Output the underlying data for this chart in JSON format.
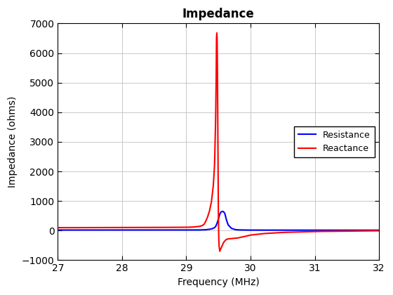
{
  "title": "Impedance",
  "xlabel": "Frequency (MHz)",
  "ylabel": "Impedance (ohms)",
  "xlim": [
    27,
    32
  ],
  "ylim": [
    -1000,
    7000
  ],
  "xticks": [
    27,
    28,
    29,
    30,
    31,
    32
  ],
  "yticks": [
    -1000,
    0,
    1000,
    2000,
    3000,
    4000,
    5000,
    6000,
    7000
  ],
  "resistance_color": "#0000FF",
  "reactance_color": "#FF0000",
  "legend_labels": [
    "Resistance",
    "Reactance"
  ],
  "background_color": "#FFFFFF",
  "grid_color": "#C0C0C0",
  "title_fontsize": 12,
  "axis_fontsize": 10,
  "legend_fontsize": 9,
  "line_width": 1.5,
  "reactance_points_f": [
    27.0,
    27.5,
    28.0,
    28.5,
    29.0,
    29.1,
    29.2,
    29.25,
    29.28,
    29.3,
    29.33,
    29.36,
    29.39,
    29.42,
    29.44,
    29.455,
    29.465,
    29.47,
    29.475,
    29.48,
    29.485,
    29.49,
    29.495,
    29.5,
    29.505,
    29.51,
    29.52,
    29.54,
    29.58,
    29.62,
    29.65,
    29.7,
    29.75,
    29.8,
    29.9,
    30.0,
    30.2,
    30.5,
    31.0,
    31.5,
    32.0
  ],
  "reactance_points_v": [
    100,
    102,
    105,
    108,
    112,
    120,
    140,
    170,
    220,
    300,
    450,
    650,
    950,
    1500,
    2200,
    3500,
    5000,
    6500,
    6700,
    6500,
    5500,
    4000,
    2000,
    500,
    -200,
    -500,
    -700,
    -600,
    -400,
    -300,
    -280,
    -270,
    -260,
    -250,
    -200,
    -150,
    -100,
    -60,
    -30,
    -15,
    -5
  ],
  "resistance_points_f": [
    27.0,
    27.5,
    28.0,
    28.5,
    29.0,
    29.1,
    29.2,
    29.25,
    29.3,
    29.35,
    29.4,
    29.44,
    29.46,
    29.48,
    29.5,
    29.52,
    29.54,
    29.56,
    29.58,
    29.6,
    29.62,
    29.65,
    29.7,
    29.75,
    29.8,
    29.9,
    30.0,
    30.5,
    31.0,
    31.5,
    32.0
  ],
  "resistance_points_v": [
    20,
    20,
    20,
    20,
    20,
    20,
    22,
    25,
    30,
    40,
    60,
    100,
    150,
    250,
    400,
    550,
    630,
    650,
    640,
    580,
    400,
    200,
    80,
    40,
    25,
    20,
    18,
    16,
    15,
    15,
    15
  ]
}
